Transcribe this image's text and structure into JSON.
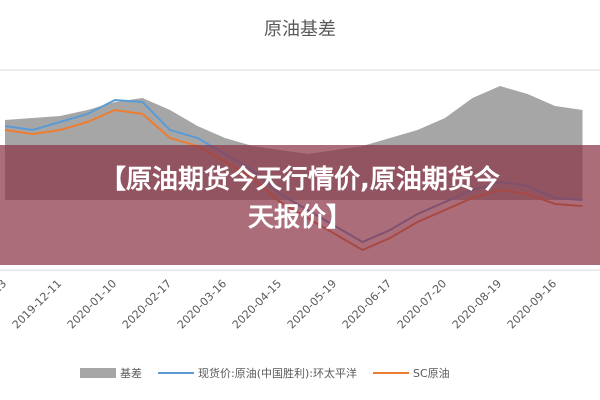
{
  "chart_data": {
    "type": "line",
    "title": "原油基差",
    "categories": [
      "13",
      null,
      "2019-12-11",
      null,
      "2020-01-10",
      null,
      "2020-02-17",
      null,
      "2020-03-16",
      null,
      "2020-04-15",
      null,
      "2020-05-19",
      null,
      "2020-06-17",
      null,
      "2020-07-20",
      null,
      "2020-08-19",
      null,
      "2020-09-16",
      null
    ],
    "series": [
      {
        "name": "基差",
        "color": "#a6a6a6",
        "values": [
          75,
          76,
          77,
          80,
          84,
          86,
          80,
          72,
          66,
          62,
          60,
          58,
          60,
          62,
          66,
          70,
          76,
          86,
          92,
          88,
          82,
          80
        ]
      },
      {
        "name": "现货价:原油(中国胜利):环太平洋",
        "color": "#5b9bd5",
        "values": [
          72,
          70,
          74,
          78,
          85,
          84,
          70,
          66,
          58,
          50,
          38,
          30,
          22,
          14,
          20,
          28,
          34,
          40,
          44,
          42,
          36,
          35
        ]
      },
      {
        "name": "SC原油",
        "color": "#ed7d31",
        "values": [
          70,
          68,
          70,
          74,
          80,
          78,
          66,
          62,
          54,
          46,
          34,
          26,
          18,
          10,
          16,
          24,
          30,
          36,
          40,
          38,
          33,
          32
        ]
      }
    ],
    "ylim": [
      0,
      100
    ],
    "grid": true
  },
  "banner": {
    "title": "【原油期货今天行情价,原油期货今天报价】"
  }
}
